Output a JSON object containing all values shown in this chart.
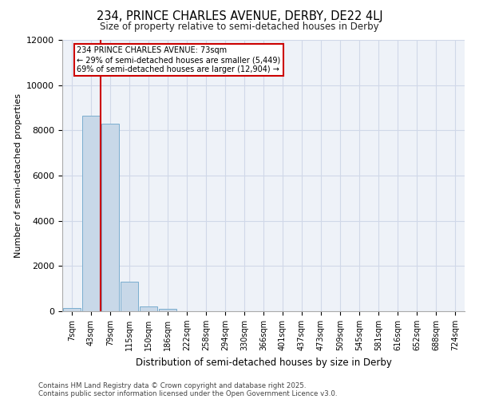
{
  "title_line1": "234, PRINCE CHARLES AVENUE, DERBY, DE22 4LJ",
  "title_line2": "Size of property relative to semi-detached houses in Derby",
  "xlabel": "Distribution of semi-detached houses by size in Derby",
  "ylabel": "Number of semi-detached properties",
  "categories": [
    "7sqm",
    "43sqm",
    "79sqm",
    "115sqm",
    "150sqm",
    "186sqm",
    "222sqm",
    "258sqm",
    "294sqm",
    "330sqm",
    "366sqm",
    "401sqm",
    "437sqm",
    "473sqm",
    "509sqm",
    "545sqm",
    "581sqm",
    "616sqm",
    "652sqm",
    "688sqm",
    "724sqm"
  ],
  "values": [
    130,
    8650,
    8300,
    1300,
    220,
    90,
    10,
    0,
    0,
    0,
    0,
    0,
    0,
    0,
    0,
    0,
    0,
    0,
    0,
    0,
    0
  ],
  "bar_color": "#c8d8e8",
  "bar_edge_color": "#7aadcf",
  "vline_x": 1.5,
  "property_label": "234 PRINCE CHARLES AVENUE: 73sqm",
  "annotation_arrow_left": "← 29% of semi-detached houses are smaller (5,449)",
  "annotation_arrow_right": "69% of semi-detached houses are larger (12,904) →",
  "vline_color": "#cc0000",
  "annotation_box_color": "#cc0000",
  "grid_color": "#d0d8e8",
  "background_color": "#eef2f8",
  "ylim": [
    0,
    12000
  ],
  "yticks": [
    0,
    2000,
    4000,
    6000,
    8000,
    10000,
    12000
  ],
  "footer_line1": "Contains HM Land Registry data © Crown copyright and database right 2025.",
  "footer_line2": "Contains public sector information licensed under the Open Government Licence v3.0."
}
